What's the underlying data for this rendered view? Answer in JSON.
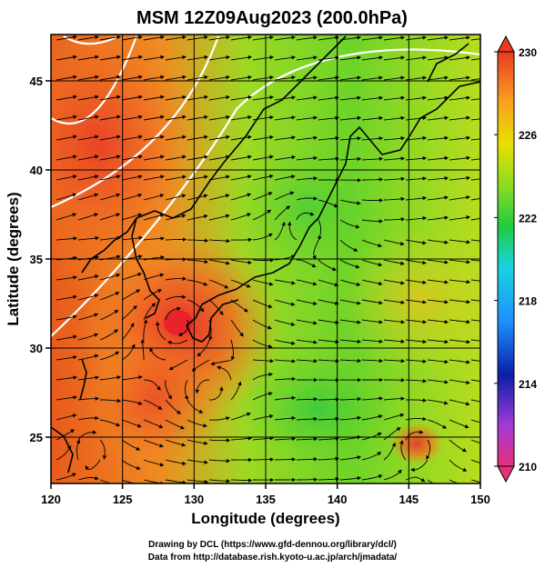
{
  "figure": {
    "title": "MSM 12Z09Aug2023 (200.0hPa)",
    "xlabel": "Longitude (degrees)",
    "ylabel": "Latitude  (degrees)",
    "credit_line1": "Drawing by DCL (https://www.gfd-dennou.org/library/dcl/)",
    "credit_line2": "Data from http://database.rish.kyoto-u.ac.jp/arch/jmadata/"
  },
  "map": {
    "x_ticks": [
      "120",
      "125",
      "130",
      "135",
      "140",
      "145",
      "150"
    ],
    "y_ticks": [
      "25",
      "30",
      "35",
      "40",
      "45"
    ],
    "x_range": [
      120,
      150
    ],
    "y_range": [
      22.4,
      47.6
    ],
    "grid": true,
    "contour_color": "#ffffff",
    "streamline_color": "#000000"
  },
  "colorbar": {
    "min": 210,
    "max": 230,
    "labels": [
      "230",
      "226",
      "222",
      "218",
      "214",
      "210"
    ],
    "colors": [
      "#e8307a",
      "#8a2be2",
      "#0a1fa8",
      "#1e90ff",
      "#19d3e0",
      "#20cc40",
      "#8fdc20",
      "#e8e000",
      "#f8a020",
      "#e83c20"
    ]
  },
  "chart_data": {
    "type": "heatmap",
    "title": "MSM 12Z09Aug2023 (200.0hPa)",
    "xlabel": "Longitude (degrees)",
    "ylabel": "Latitude  (degrees)",
    "xlim": [
      120,
      150
    ],
    "ylim": [
      22.4,
      47.6
    ],
    "colorbar_range": [
      210,
      230
    ],
    "features": [
      {
        "kind": "warm-core",
        "lon": 129.2,
        "lat": 32.4,
        "value": 230
      },
      {
        "kind": "warm-core",
        "lon": 145.6,
        "lat": 25.0,
        "value": 228
      }
    ]
  }
}
